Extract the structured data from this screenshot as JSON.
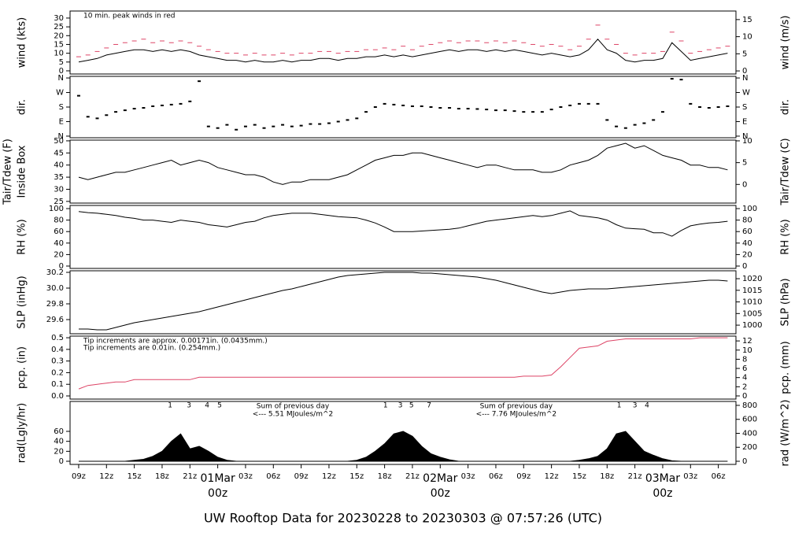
{
  "chart_data": {
    "type": "multi-panel",
    "title": "UW Rooftop Data for 20230228  to  20230303 @ 07:57:26  (UTC)",
    "xlim": [
      8.07,
      79.9
    ],
    "xticks": [
      {
        "value": 9,
        "label": "09z"
      },
      {
        "value": 12,
        "label": "12z"
      },
      {
        "value": 15,
        "label": "15z"
      },
      {
        "value": 18,
        "label": "18z"
      },
      {
        "value": 21,
        "label": "21z"
      },
      {
        "value": 24,
        "label": "00z",
        "date": "01Mar"
      },
      {
        "value": 27,
        "label": "03z"
      },
      {
        "value": 30,
        "label": "06z"
      },
      {
        "value": 33,
        "label": "09z"
      },
      {
        "value": 36,
        "label": "12z"
      },
      {
        "value": 39,
        "label": "15z"
      },
      {
        "value": 42,
        "label": "18z"
      },
      {
        "value": 45,
        "label": "21z"
      },
      {
        "value": 48,
        "label": "00z",
        "date": "02Mar"
      },
      {
        "value": 51,
        "label": "03z"
      },
      {
        "value": 54,
        "label": "06z"
      },
      {
        "value": 57,
        "label": "09z"
      },
      {
        "value": 60,
        "label": "12z"
      },
      {
        "value": 63,
        "label": "15z"
      },
      {
        "value": 66,
        "label": "18z"
      },
      {
        "value": 69,
        "label": "21z"
      },
      {
        "value": 72,
        "label": "00z",
        "date": "03Mar"
      },
      {
        "value": 75,
        "label": "03z"
      },
      {
        "value": 78,
        "label": "06z"
      }
    ],
    "date_color": "#dd4466",
    "title_color": "#3399cc",
    "x": [
      9,
      10,
      11,
      12,
      13,
      14,
      15,
      16,
      17,
      18,
      19,
      20,
      21,
      22,
      23,
      24,
      25,
      26,
      27,
      28,
      29,
      30,
      31,
      32,
      33,
      34,
      35,
      36,
      37,
      38,
      39,
      40,
      41,
      42,
      43,
      44,
      45,
      46,
      47,
      48,
      49,
      50,
      51,
      52,
      53,
      54,
      55,
      56,
      57,
      58,
      59,
      60,
      61,
      62,
      63,
      64,
      65,
      66,
      67,
      68,
      69,
      70,
      71,
      72,
      73,
      74,
      75,
      76,
      77,
      78,
      79
    ],
    "panels": [
      {
        "type": "line",
        "ylabel": "wind (kts)",
        "y2label": "wind (m/s)",
        "ylim": [
          -1.8,
          34
        ],
        "yticks": [
          0,
          5,
          10,
          15,
          20,
          25,
          30
        ],
        "y2lim": [
          -0.9,
          17.5
        ],
        "y2ticks": [
          0,
          5,
          10,
          15
        ],
        "annotations": [
          {
            "text": "10 min. peak winds in red",
            "color": "#dd4466"
          }
        ],
        "series": [
          {
            "type": "dash",
            "color": "#dd4466",
            "values": [
              8,
              9,
              11,
              13,
              15,
              16,
              17,
              18,
              16,
              17,
              16,
              17,
              16,
              14,
              12,
              11,
              10,
              10,
              9,
              10,
              9,
              9,
              10,
              9,
              10,
              10,
              11,
              11,
              10,
              11,
              11,
              12,
              12,
              13,
              12,
              14,
              12,
              14,
              15,
              16,
              17,
              16,
              17,
              17,
              16,
              17,
              16,
              17,
              16,
              15,
              14,
              15,
              14,
              12,
              14,
              18,
              26,
              18,
              15,
              10,
              9,
              10,
              10,
              11,
              22,
              17,
              10,
              11,
              12,
              13,
              14
            ]
          },
          {
            "type": "line",
            "color": "#000000",
            "values": [
              5,
              6,
              7,
              9,
              10,
              11,
              12,
              12,
              11,
              12,
              11,
              12,
              11,
              9,
              8,
              7,
              6,
              6,
              5,
              6,
              5,
              5,
              6,
              5,
              6,
              6,
              7,
              7,
              6,
              7,
              7,
              8,
              8,
              9,
              8,
              9,
              8,
              9,
              10,
              11,
              12,
              11,
              12,
              12,
              11,
              12,
              11,
              12,
              11,
              10,
              9,
              10,
              9,
              8,
              9,
              12,
              18,
              12,
              10,
              6,
              5,
              6,
              6,
              7,
              16,
              11,
              6,
              7,
              8,
              9,
              10
            ]
          }
        ]
      },
      {
        "type": "scatter",
        "ylabel": "dir.",
        "y2label": "dir.",
        "ylim": [
          -10,
          370
        ],
        "yticks": [
          {
            "value": 0,
            "label": "N"
          },
          {
            "value": 90,
            "label": "E"
          },
          {
            "value": 180,
            "label": "S"
          },
          {
            "value": 270,
            "label": "W"
          },
          {
            "value": 360,
            "label": "N"
          }
        ],
        "y2lim": [
          -10,
          370
        ],
        "y2ticks": [
          {
            "value": 0,
            "label": "N"
          },
          {
            "value": 90,
            "label": "E"
          },
          {
            "value": 180,
            "label": "S"
          },
          {
            "value": 270,
            "label": "W"
          },
          {
            "value": 360,
            "label": "N"
          }
        ],
        "series": [
          {
            "type": "dot",
            "color": "#000000",
            "values": [
              250,
              120,
              110,
              130,
              150,
              160,
              170,
              175,
              185,
              190,
              195,
              200,
              215,
              340,
              60,
              50,
              70,
              40,
              60,
              70,
              50,
              60,
              70,
              60,
              65,
              75,
              75,
              80,
              90,
              100,
              110,
              150,
              180,
              200,
              195,
              190,
              185,
              185,
              180,
              175,
              175,
              170,
              170,
              168,
              165,
              160,
              160,
              155,
              150,
              150,
              150,
              165,
              180,
              190,
              200,
              200,
              200,
              100,
              60,
              50,
              70,
              80,
              100,
              150,
              355,
              350,
              200,
              180,
              175,
              180,
              185
            ]
          }
        ]
      },
      {
        "type": "line",
        "ylabel": [
          "Tair/Tdew (F)",
          "Inside Box"
        ],
        "y2label": "Tair/Tdew (C)",
        "ylim": [
          24.3,
          50.3
        ],
        "yticks": [
          25,
          30,
          35,
          40,
          45,
          50
        ],
        "y2lim": [
          -4.28,
          10.17
        ],
        "y2ticks": [
          0,
          5,
          10
        ],
        "series": [
          {
            "type": "line",
            "color": "#000000",
            "values": [
              35,
              34,
              35,
              36,
              37,
              37,
              38,
              39,
              40,
              41,
              42,
              40,
              41,
              42,
              41,
              39,
              38,
              37,
              36,
              36,
              35,
              33,
              32,
              33,
              33,
              34,
              34,
              34,
              35,
              36,
              38,
              40,
              42,
              43,
              44,
              44,
              45,
              45,
              44,
              43,
              42,
              41,
              40,
              39,
              40,
              40,
              39,
              38,
              38,
              38,
              37,
              37,
              38,
              40,
              41,
              42,
              44,
              47,
              48,
              49,
              47,
              48,
              46,
              44,
              43,
              42,
              40,
              40,
              39,
              39,
              38
            ]
          }
        ]
      },
      {
        "type": "line",
        "ylabel": "RH (%)",
        "y2label": "RH (%)",
        "ylim": [
          -4.1,
          105.5
        ],
        "yticks": [
          0,
          20,
          40,
          60,
          80,
          100
        ],
        "y2lim": [
          -4.1,
          105.5
        ],
        "y2ticks": [
          0,
          20,
          40,
          60,
          80,
          100
        ],
        "series": [
          {
            "type": "line",
            "color": "#000000",
            "values": [
              95,
              93,
              92,
              90,
              88,
              85,
              83,
              80,
              80,
              78,
              76,
              80,
              78,
              76,
              72,
              70,
              68,
              72,
              76,
              78,
              84,
              88,
              90,
              92,
              92,
              92,
              90,
              88,
              86,
              85,
              84,
              80,
              75,
              68,
              60,
              60,
              60,
              61,
              62,
              63,
              64,
              66,
              70,
              74,
              78,
              80,
              82,
              84,
              86,
              88,
              86,
              88,
              92,
              96,
              88,
              86,
              84,
              80,
              72,
              66,
              65,
              64,
              58,
              58,
              52,
              62,
              70,
              73,
              75,
              76,
              78
            ]
          }
        ]
      },
      {
        "type": "line",
        "ylabel": "SLP (inHg)",
        "y2label": "SLP (hPa)",
        "ylim": [
          29.42,
          30.22
        ],
        "yticks": [
          29.6,
          29.8,
          {
            "value": 30,
            "label": "30.0"
          },
          30.2
        ],
        "y2lim": [
          996.3,
          1023.4
        ],
        "y2ticks": [
          1000,
          1005,
          1010,
          1015,
          1020
        ],
        "series": [
          {
            "type": "line",
            "color": "#000000",
            "values": [
              29.48,
              29.48,
              29.47,
              29.47,
              29.5,
              29.53,
              29.56,
              29.58,
              29.6,
              29.62,
              29.64,
              29.66,
              29.68,
              29.7,
              29.73,
              29.76,
              29.79,
              29.82,
              29.85,
              29.88,
              29.91,
              29.94,
              29.97,
              29.99,
              30.02,
              30.05,
              30.08,
              30.11,
              30.14,
              30.16,
              30.17,
              30.18,
              30.19,
              30.2,
              30.2,
              30.2,
              30.2,
              30.19,
              30.19,
              30.18,
              30.17,
              30.16,
              30.15,
              30.14,
              30.12,
              30.1,
              30.07,
              30.04,
              30.01,
              29.98,
              29.95,
              29.93,
              29.95,
              29.97,
              29.98,
              29.99,
              29.99,
              29.99,
              30,
              30.01,
              30.02,
              30.03,
              30.04,
              30.05,
              30.06,
              30.07,
              30.08,
              30.09,
              30.1,
              30.1,
              30.09
            ]
          }
        ]
      },
      {
        "type": "line",
        "ylabel": "pcp. (in)",
        "y2label": "pcp. (mm)",
        "ylim": [
          -0.027,
          0.514
        ],
        "yticks": [
          {
            "value": 0,
            "label": "0.0"
          },
          0.1,
          0.2,
          0.3,
          0.4,
          0.5
        ],
        "y2lim": [
          -0.69,
          13.05
        ],
        "y2ticks": [
          0,
          2,
          4,
          6,
          8,
          10,
          12
        ],
        "annotations": [
          {
            "text": "Tip increments are approx. 0.00171in. (0.0435mm.)",
            "color": "#dd4466"
          },
          {
            "text": "Tip increments are 0.01in. (0.254mm.)",
            "color": "#3399dd"
          }
        ],
        "series": [
          {
            "type": "line",
            "color": "#dd4466",
            "values": [
              0.06,
              0.09,
              0.1,
              0.11,
              0.12,
              0.12,
              0.14,
              0.14,
              0.14,
              0.14,
              0.14,
              0.14,
              0.14,
              0.16,
              0.16,
              0.16,
              0.16,
              0.16,
              0.16,
              0.16,
              0.16,
              0.16,
              0.16,
              0.16,
              0.16,
              0.16,
              0.16,
              0.16,
              0.16,
              0.16,
              0.16,
              0.16,
              0.16,
              0.16,
              0.16,
              0.16,
              0.16,
              0.16,
              0.16,
              0.16,
              0.16,
              0.16,
              0.16,
              0.16,
              0.16,
              0.16,
              0.16,
              0.16,
              0.17,
              0.17,
              0.17,
              0.18,
              0.25,
              0.33,
              0.41,
              0.42,
              0.43,
              0.47,
              0.48,
              0.49,
              0.49,
              0.49,
              0.49,
              0.49,
              0.49,
              0.49,
              0.49,
              0.5,
              0.5,
              0.5,
              0.5
            ]
          }
        ]
      },
      {
        "type": "area",
        "ylabel": "rad(Lgly/hr)",
        "y2label": "rad (W/m^2)",
        "ylim": [
          -6.3,
          120
        ],
        "yticks": [
          0,
          20,
          40,
          60
        ],
        "y2lim": [
          -45,
          856
        ],
        "y2ticks": [
          0,
          200,
          400,
          600,
          800
        ],
        "note_color": "#9933cc",
        "notes": [
          {
            "x": 32.1,
            "lines": [
              "Sum of previous day",
              "<--- 5.51 MJoules/m^2"
            ]
          },
          {
            "x": 56.2,
            "lines": [
              "Sum of previous day",
              "<--- 7.76 MJoules/m^2"
            ]
          }
        ],
        "markers": [
          {
            "label": "1",
            "x": 18.86
          },
          {
            "label": "3",
            "x": 20.9
          },
          {
            "label": "4",
            "x": 22.85
          },
          {
            "label": "5",
            "x": 24.2
          },
          {
            "label": "1",
            "x": 42.1
          },
          {
            "label": "3",
            "x": 43.7
          },
          {
            "label": "5",
            "x": 44.9
          },
          {
            "label": "7",
            "x": 46.8
          },
          {
            "label": "1",
            "x": 67.3
          },
          {
            "label": "3",
            "x": 69.0
          },
          {
            "label": "4",
            "x": 70.3
          }
        ],
        "series": [
          {
            "type": "area",
            "color": "#000000",
            "values": [
              0,
              0,
              0,
              0,
              0,
              0,
              2,
              4,
              10,
              20,
              40,
              55,
              25,
              30,
              20,
              8,
              2,
              0,
              0,
              0,
              0,
              0,
              0,
              0,
              0,
              0,
              0,
              0,
              0,
              0,
              2,
              8,
              20,
              35,
              55,
              60,
              50,
              30,
              15,
              8,
              3,
              0,
              0,
              0,
              0,
              0,
              0,
              0,
              0,
              0,
              0,
              0,
              0,
              0,
              2,
              5,
              10,
              25,
              55,
              60,
              40,
              20,
              12,
              5,
              1,
              0,
              0,
              0,
              0,
              0,
              0
            ]
          }
        ]
      }
    ]
  }
}
